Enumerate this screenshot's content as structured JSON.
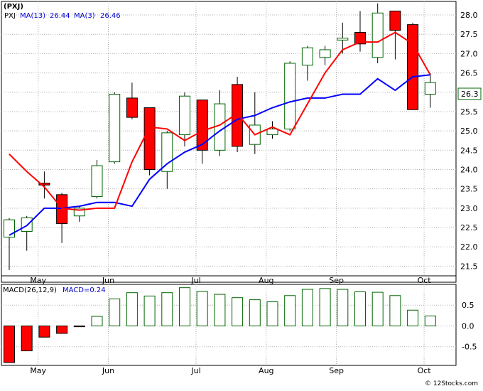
{
  "chart_data": [
    {
      "type": "candlestick",
      "title": "(PXJ)",
      "legend": {
        "ticker": "PXJ",
        "ma13_label": "MA(13)",
        "ma13_value": "26.44",
        "ma3_label": "MA(3)",
        "ma3_value": "26.46"
      },
      "last_price_label": "26.3",
      "ylim": [
        21.25,
        28.35
      ],
      "y_ticks": [
        "21.5",
        "22.0",
        "22.5",
        "23.0",
        "23.5",
        "24.0",
        "24.5",
        "25.0",
        "25.5",
        "26.0",
        "26.5",
        "27.0",
        "27.5",
        "28.0"
      ],
      "x_labels": [
        {
          "label": "May",
          "index": 1
        },
        {
          "label": "Jun",
          "index": 5
        },
        {
          "label": "Jul",
          "index": 10
        },
        {
          "label": "Aug",
          "index": 14
        },
        {
          "label": "Sep",
          "index": 18
        },
        {
          "label": "Oct",
          "index": 23
        }
      ],
      "candles": [
        {
          "open": 22.25,
          "high": 22.75,
          "low": 21.4,
          "close": 22.7
        },
        {
          "open": 22.4,
          "high": 22.8,
          "low": 21.9,
          "close": 22.75
        },
        {
          "open": 23.65,
          "high": 23.95,
          "low": 23.25,
          "close": 23.6
        },
        {
          "open": 23.35,
          "high": 23.4,
          "low": 22.1,
          "close": 22.6
        },
        {
          "open": 22.8,
          "high": 23.05,
          "low": 22.65,
          "close": 23.0
        },
        {
          "open": 23.3,
          "high": 24.25,
          "low": 23.25,
          "close": 24.1
        },
        {
          "open": 24.2,
          "high": 26.0,
          "low": 24.15,
          "close": 25.95
        },
        {
          "open": 25.85,
          "high": 26.25,
          "low": 25.3,
          "close": 25.35
        },
        {
          "open": 25.6,
          "high": 25.6,
          "low": 23.85,
          "close": 24.0
        },
        {
          "open": 23.95,
          "high": 25.0,
          "low": 23.5,
          "close": 24.95
        },
        {
          "open": 24.9,
          "high": 26.0,
          "low": 24.6,
          "close": 25.9
        },
        {
          "open": 25.8,
          "high": 25.8,
          "low": 24.15,
          "close": 24.5
        },
        {
          "open": 24.5,
          "high": 26.05,
          "low": 24.35,
          "close": 25.7
        },
        {
          "open": 26.2,
          "high": 26.4,
          "low": 24.45,
          "close": 24.6
        },
        {
          "open": 24.65,
          "high": 26.0,
          "low": 24.4,
          "close": 25.15
        },
        {
          "open": 24.9,
          "high": 25.25,
          "low": 24.8,
          "close": 25.05
        },
        {
          "open": 25.05,
          "high": 26.8,
          "low": 25.0,
          "close": 26.75
        },
        {
          "open": 26.7,
          "high": 27.2,
          "low": 26.3,
          "close": 27.15
        },
        {
          "open": 26.9,
          "high": 27.2,
          "low": 26.7,
          "close": 27.1
        },
        {
          "open": 27.35,
          "high": 27.8,
          "low": 27.0,
          "close": 27.4
        },
        {
          "open": 27.55,
          "high": 28.1,
          "low": 27.05,
          "close": 27.25
        },
        {
          "open": 26.9,
          "high": 28.3,
          "low": 26.75,
          "close": 28.05
        },
        {
          "open": 28.1,
          "high": 28.1,
          "low": 26.85,
          "close": 27.6
        },
        {
          "open": 27.75,
          "high": 27.8,
          "low": 25.55,
          "close": 25.55
        },
        {
          "open": 25.95,
          "high": 26.5,
          "low": 25.6,
          "close": 26.25
        }
      ],
      "ma3": [
        24.4,
        23.95,
        23.55,
        23.0,
        22.95,
        23.0,
        23.0,
        24.2,
        25.1,
        25.05,
        24.75,
        25.0,
        25.15,
        25.45,
        24.9,
        25.1,
        24.9,
        25.7,
        26.5,
        27.1,
        27.3,
        27.3,
        27.55,
        27.25,
        26.45
      ],
      "ma13": [
        22.3,
        22.55,
        23.0,
        23.0,
        23.05,
        23.15,
        23.15,
        23.05,
        23.75,
        24.15,
        24.45,
        24.65,
        25.0,
        25.3,
        25.4,
        25.6,
        25.75,
        25.85,
        25.85,
        25.95,
        25.95,
        26.35,
        26.05,
        26.4,
        26.45
      ]
    },
    {
      "type": "bar",
      "title": "MACD",
      "legend": {
        "label": "MACD(26,12,9)",
        "value_label": "MACD=0.24"
      },
      "ylim": [
        -0.95,
        1.0
      ],
      "y_ticks": [
        "0.5",
        "0.0",
        "-0.5"
      ],
      "values": [
        -0.88,
        -0.6,
        -0.27,
        -0.18,
        -0.02,
        0.23,
        0.65,
        0.8,
        0.72,
        0.8,
        0.92,
        0.83,
        0.76,
        0.68,
        0.63,
        0.58,
        0.73,
        0.88,
        0.9,
        0.88,
        0.82,
        0.81,
        0.73,
        0.38,
        0.24
      ],
      "x_labels": [
        {
          "label": "May",
          "index": 1
        },
        {
          "label": "Jun",
          "index": 5
        },
        {
          "label": "Jul",
          "index": 10
        },
        {
          "label": "Aug",
          "index": 14
        },
        {
          "label": "Sep",
          "index": 18
        },
        {
          "label": "Oct",
          "index": 23
        }
      ]
    }
  ],
  "footer": {
    "credit": "© 12Stocks.com"
  },
  "colors": {
    "up": "#006400",
    "down": "#ff0000",
    "ma3": "#ff0000",
    "ma13": "#0000ff",
    "grid": "#b0b0b0",
    "axis_text": "#000000"
  }
}
